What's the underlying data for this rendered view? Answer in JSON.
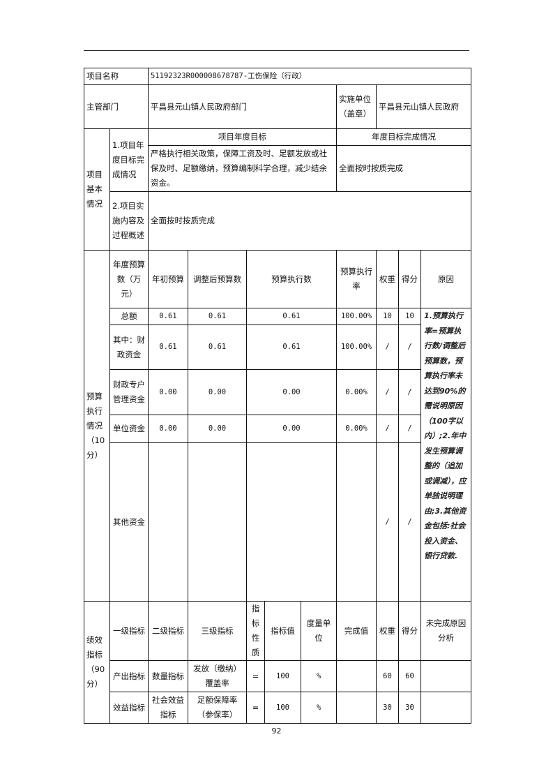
{
  "project_name_label": "项目名称",
  "project_name": "51192323R000008678787-工伤保险（行政）",
  "dept_label": "主管部门",
  "dept": "平昌县元山镇人民政府部门",
  "impl_unit_label": "实施单位（盖章）",
  "impl_unit": "平昌县元山镇人民政府",
  "basic": {
    "section_label": "项目基本情况",
    "goal_label": "1.项目年度目标完成情况",
    "goal_header": "项目年度目标",
    "completion_header": "年度目标完成情况",
    "goal_text": "严格执行相关政策，保障工资及时、足额发放或社保及时、足额缴纳，预算编制科学合理，减少结余资金。",
    "completion_text": "全面按时按质完成",
    "impl_label": "2.项目实施内容及过程概述",
    "impl_text": "全面按时按质完成"
  },
  "budget": {
    "section_label": "预算执行情况（10分）",
    "headers": [
      "年度预算数（万元）",
      "年初预算",
      "调整后预算数",
      "预算执行数",
      "预算执行率",
      "权重",
      "得分",
      "原因"
    ],
    "rows": [
      {
        "name": "总额",
        "initial": "0.61",
        "adjusted": "0.61",
        "executed": "0.61",
        "rate": "100.00%",
        "weight": "10",
        "score": "10"
      },
      {
        "name": "其中：财政资金",
        "initial": "0.61",
        "adjusted": "0.61",
        "executed": "0.61",
        "rate": "100.00%",
        "weight": "/",
        "score": "/"
      },
      {
        "name": "财政专户管理资金",
        "initial": "0.00",
        "adjusted": "0.00",
        "executed": "0.00",
        "rate": "0.00%",
        "weight": "/",
        "score": "/"
      },
      {
        "name": "单位资金",
        "initial": "0.00",
        "adjusted": "0.00",
        "executed": "0.00",
        "rate": "0.00%",
        "weight": "/",
        "score": "/"
      },
      {
        "name": "其他资金",
        "initial": "",
        "adjusted": "",
        "executed": "",
        "rate": "",
        "weight": "/",
        "score": "/"
      }
    ],
    "reason_note": "1.预算执行率=预算执行数/调整后预算数，预算执行率未达到90%的需说明原因（100字以内）;2.年中发生预算调整的（追加或调减），应单独说明理由;3.其他资金包括:社会投入资金、银行贷款."
  },
  "perf": {
    "section_label": "绩效指标（90分）",
    "headers": [
      "一级指标",
      "二级指标",
      "三级指标",
      "指标性质",
      "指标值",
      "度量单位",
      "完成值",
      "权重",
      "得分",
      "未完成原因分析"
    ],
    "rows": [
      {
        "l1": "产出指标",
        "l2": "数量指标",
        "l3": "发放（缴纳）覆盖率",
        "nature": "=",
        "value": "100",
        "unit": "%",
        "done": "",
        "weight": "60",
        "score": "60",
        "reason": ""
      },
      {
        "l1": "效益指标",
        "l2": "社会效益指标",
        "l3": "足额保障率（参保率）",
        "nature": "=",
        "value": "100",
        "unit": "%",
        "done": "",
        "weight": "30",
        "score": "30",
        "reason": ""
      }
    ]
  },
  "page_number": "92"
}
